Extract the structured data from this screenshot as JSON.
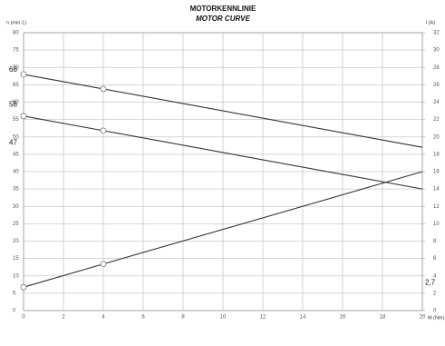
{
  "chart_data": {
    "type": "line",
    "title": "MOTORKENNLINIE",
    "subtitle": "MOTOR CURVE",
    "ylabel": "n (min-1)",
    "y2label": "I (A)",
    "xlabel": "M (Nm)",
    "x": [
      0,
      4,
      20
    ],
    "markers": [
      0,
      1
    ],
    "series": [
      {
        "color": "#333333",
        "values": [
          68,
          63.8,
          47
        ]
      },
      {
        "color": "#333333",
        "values": [
          56,
          51.8,
          35
        ]
      },
      {
        "color": "#333333",
        "axis": "y2",
        "values": [
          2.7,
          5.36,
          16
        ]
      }
    ],
    "xlim": [
      0,
      20
    ],
    "xticks": [
      0,
      2,
      4,
      6,
      8,
      10,
      12,
      14,
      16,
      18,
      20
    ],
    "ylim": [
      0,
      80
    ],
    "yticks": [
      0,
      5,
      10,
      15,
      20,
      25,
      30,
      35,
      40,
      45,
      50,
      55,
      60,
      65,
      70,
      75,
      80
    ],
    "y2lim": [
      0,
      32
    ],
    "y2ticks": [
      0,
      2,
      4,
      6,
      8,
      10,
      12,
      14,
      16,
      18,
      20,
      22,
      24,
      26,
      28,
      30,
      32
    ],
    "grid": true,
    "annotations": [
      {
        "text": "68",
        "y": 68
      },
      {
        "text": "58",
        "y": 58
      },
      {
        "text": "47",
        "y": 47
      },
      {
        "text": "2,7",
        "y": 2.7,
        "axis": "y2"
      }
    ]
  }
}
